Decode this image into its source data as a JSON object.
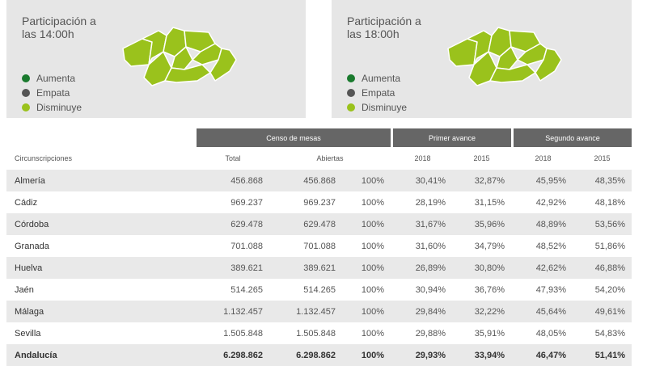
{
  "panels": [
    {
      "title": "Participación a las 14:00h"
    },
    {
      "title": "Participación a las 18:00h"
    }
  ],
  "legend": [
    {
      "label": "Aumenta",
      "color": "#1a7a2e"
    },
    {
      "label": "Empata",
      "color": "#555555"
    },
    {
      "label": "Disminuye",
      "color": "#9ac21c"
    }
  ],
  "map_color": "#9ac21c",
  "table": {
    "group_headers": [
      "Censo de mesas",
      "Primer avance",
      "Segundo avance"
    ],
    "sub_headers": [
      "Circunscripciones",
      "Total",
      "Abiertas",
      "",
      "2018",
      "2015",
      "2018",
      "2015"
    ],
    "rows": [
      [
        "Almería",
        "456.868",
        "456.868",
        "100%",
        "30,41%",
        "32,87%",
        "45,95%",
        "48,35%"
      ],
      [
        "Cádiz",
        "969.237",
        "969.237",
        "100%",
        "28,19%",
        "31,15%",
        "42,92%",
        "48,18%"
      ],
      [
        "Córdoba",
        "629.478",
        "629.478",
        "100%",
        "31,67%",
        "35,96%",
        "48,89%",
        "53,56%"
      ],
      [
        "Granada",
        "701.088",
        "701.088",
        "100%",
        "31,60%",
        "34,79%",
        "48,52%",
        "51,86%"
      ],
      [
        "Huelva",
        "389.621",
        "389.621",
        "100%",
        "26,89%",
        "30,80%",
        "42,62%",
        "46,88%"
      ],
      [
        "Jaén",
        "514.265",
        "514.265",
        "100%",
        "30,94%",
        "36,76%",
        "47,93%",
        "54,20%"
      ],
      [
        "Málaga",
        "1.132.457",
        "1.132.457",
        "100%",
        "29,84%",
        "32,22%",
        "45,64%",
        "49,61%"
      ],
      [
        "Sevilla",
        "1.505.848",
        "1.505.848",
        "100%",
        "29,88%",
        "35,91%",
        "48,05%",
        "54,83%"
      ],
      [
        "Andalucía",
        "6.298.862",
        "6.298.862",
        "100%",
        "29,93%",
        "33,94%",
        "46,47%",
        "51,41%"
      ]
    ]
  }
}
